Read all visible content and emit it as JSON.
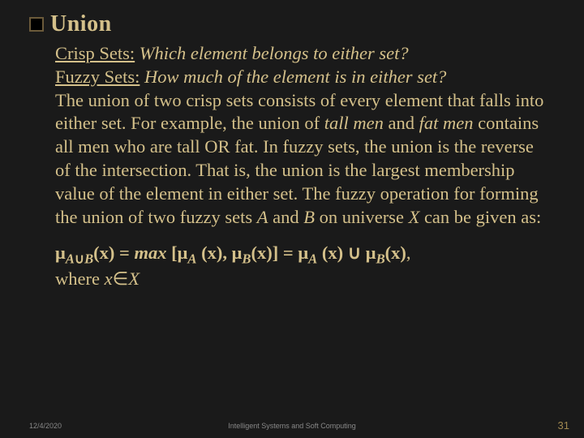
{
  "heading": {
    "title": "Union"
  },
  "body": {
    "crisp_label": "Crisp Sets:",
    "crisp_q": " Which element belongs to either set?",
    "fuzzy_label": "Fuzzy Sets:",
    "fuzzy_q": " How much of the element is in either set?",
    "para_1": "The union of two crisp sets consists of every element that falls into either set. For example, the union of ",
    "tall_men": "tall men",
    "para_2": " and ",
    "fat_men": "fat men",
    "para_3": " contains all men who are tall OR fat. In fuzzy sets, the union is the reverse of the intersection. That is, the union is the largest membership value of the element in either set. The fuzzy operation for forming the union of two fuzzy sets ",
    "A": "A",
    "para_4": " and ",
    "B": "B",
    "para_5": " on universe ",
    "X": "X",
    "para_6": " can be given as:"
  },
  "formula": {
    "mu": "μ",
    "sub_A": "A",
    "cup": "∪",
    "sub_B": "B",
    "of_x": "(x)",
    "eq": " = ",
    "max": "max",
    "lbr": " [",
    "space": " ",
    "comma": ", ",
    "rbr": "(x)]",
    "where": "where ",
    "xvar": "x",
    "in": "∈",
    "Xset": "X"
  },
  "footer": {
    "date": "12/4/2020",
    "center": "Intelligent Systems and Soft Computing",
    "page": "31"
  },
  "colors": {
    "bg": "#1a1a1a",
    "text": "#d4c08a",
    "footer": "#888888",
    "pagenum": "#a08850"
  }
}
